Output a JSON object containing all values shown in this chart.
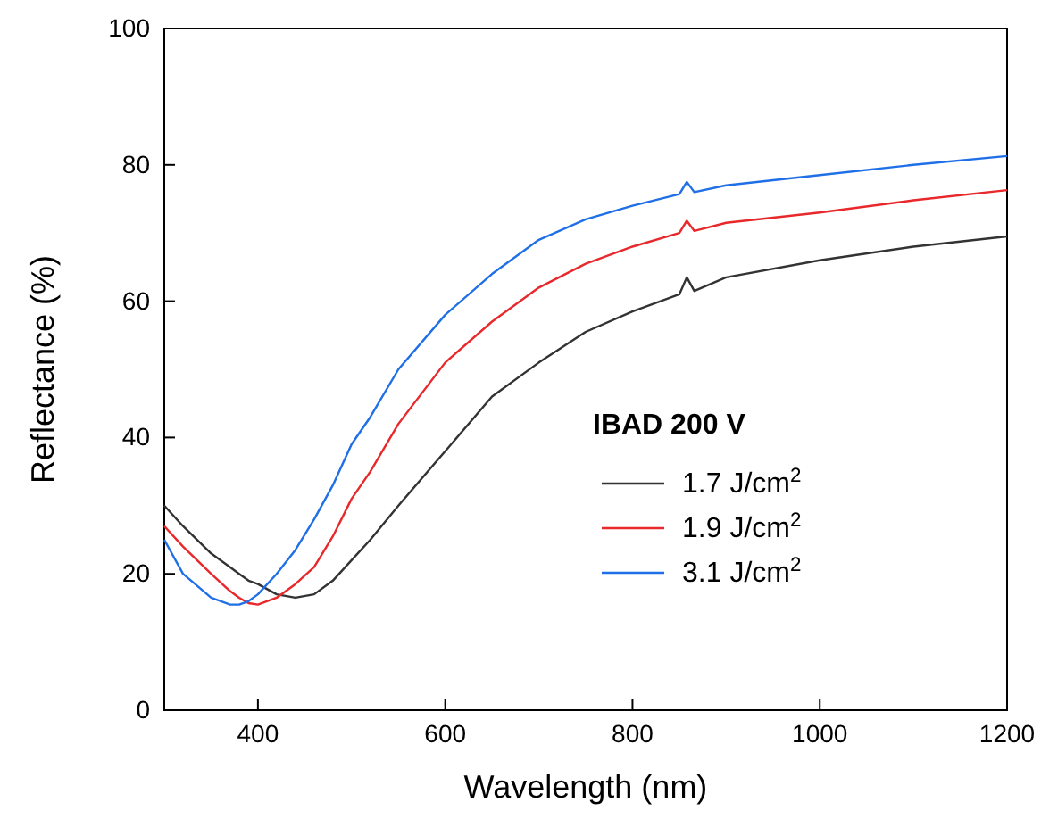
{
  "chart_data": {
    "type": "line",
    "xlabel": "Wavelength (nm)",
    "ylabel": "Reflectance (%)",
    "legend_title": "IBAD 200 V",
    "legend": "right",
    "grid": false,
    "marker": "none",
    "line_style": "solid",
    "xlim": [
      300,
      1200
    ],
    "ylim": [
      0,
      100
    ],
    "xticks": [
      400,
      600,
      800,
      1000,
      1200
    ],
    "yticks": [
      0,
      20,
      40,
      60,
      80,
      100
    ],
    "x": [
      300,
      320,
      350,
      370,
      380,
      390,
      400,
      420,
      440,
      460,
      480,
      500,
      520,
      550,
      600,
      650,
      700,
      750,
      800,
      850,
      858,
      866,
      900,
      1000,
      1100,
      1200
    ],
    "series": [
      {
        "name": "1.7 J/cm$^{2}$",
        "color": "#333333",
        "values": [
          30,
          27,
          23,
          21,
          20,
          19,
          18.5,
          17,
          16.5,
          17,
          19,
          22,
          25,
          30,
          38,
          46,
          51,
          55.5,
          58.5,
          61,
          63.5,
          61.5,
          63.5,
          66,
          68,
          69.5
        ]
      },
      {
        "name": "1.9 J/cm$^{2}$",
        "color": "#e8282b",
        "values": [
          27,
          24,
          20,
          17.5,
          16.5,
          15.7,
          15.5,
          16.5,
          18.5,
          21,
          25.5,
          31,
          35,
          42,
          51,
          57,
          62,
          65.5,
          68,
          70,
          71.8,
          70.3,
          71.5,
          73,
          74.8,
          76.3
        ]
      },
      {
        "name": "3.1 J/cm$^{2}$",
        "color": "#1f6fe6",
        "values": [
          25,
          20,
          16.5,
          15.5,
          15.5,
          16,
          17,
          20,
          23.5,
          28,
          33,
          39,
          43,
          50,
          58,
          64,
          69,
          72,
          74,
          75.7,
          77.5,
          76,
          77,
          78.5,
          80,
          81.3
        ]
      }
    ]
  }
}
